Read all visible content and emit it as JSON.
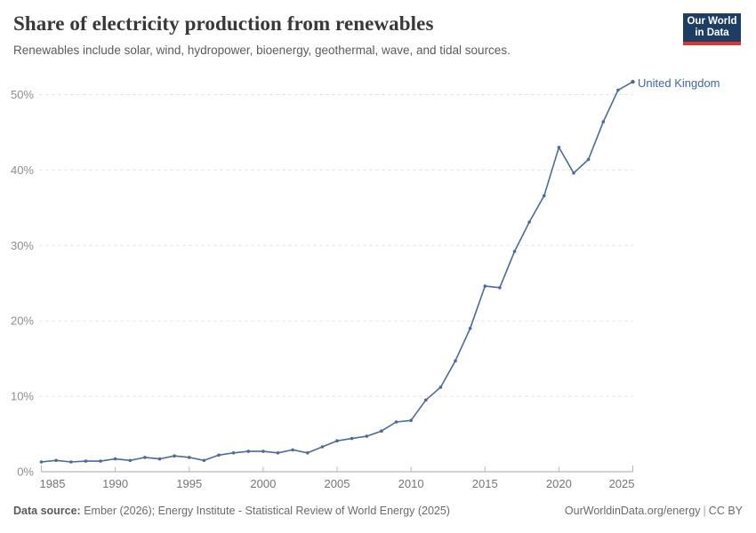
{
  "header": {
    "title": "Share of electricity production from renewables",
    "subtitle": "Renewables include solar, wind, hydropower, bioenergy, geothermal, wave, and tidal sources.",
    "logo": {
      "line1": "Our World",
      "line2": "in Data",
      "bg_color": "#1d3d63",
      "accent_color": "#e0342c"
    }
  },
  "chart_data": {
    "type": "line",
    "title": "Share of electricity production from renewables",
    "xlabel": "",
    "ylabel": "",
    "xlim": [
      1985,
      2025
    ],
    "ylim": [
      0,
      52
    ],
    "grid": "horizontal-dashed",
    "legend_position": "end-of-line-label",
    "x_ticks": [
      1985,
      1990,
      1995,
      2000,
      2005,
      2010,
      2015,
      2020,
      2025
    ],
    "y_ticks": [
      "0%",
      "10%",
      "20%",
      "30%",
      "40%",
      "50%"
    ],
    "series": [
      {
        "name": "United Kingdom",
        "color": "#4c6a9c",
        "label_color": "#3d66a6",
        "x": [
          1985,
          1986,
          1987,
          1988,
          1989,
          1990,
          1991,
          1992,
          1993,
          1994,
          1995,
          1996,
          1997,
          1998,
          1999,
          2000,
          2001,
          2002,
          2003,
          2004,
          2005,
          2006,
          2007,
          2008,
          2009,
          2010,
          2011,
          2012,
          2013,
          2014,
          2015,
          2016,
          2017,
          2018,
          2019,
          2020,
          2021,
          2022,
          2023,
          2024,
          2025
        ],
        "values": [
          1.3,
          1.5,
          1.3,
          1.4,
          1.4,
          1.7,
          1.5,
          1.9,
          1.7,
          2.1,
          1.9,
          1.5,
          2.2,
          2.5,
          2.7,
          2.7,
          2.5,
          2.9,
          2.5,
          3.3,
          4.1,
          4.4,
          4.7,
          5.4,
          6.6,
          6.8,
          9.5,
          11.2,
          14.7,
          19.0,
          24.6,
          24.4,
          29.2,
          33.1,
          36.6,
          43.0,
          39.6,
          41.4,
          46.4,
          50.6,
          51.7
        ]
      }
    ],
    "colors": {
      "gridline": "#e0e0e0",
      "axis": "#a5a5a5",
      "tick": "#b5b5b5",
      "y_tick_label": "#8d8d8d",
      "x_tick_label": "#757575"
    }
  },
  "footer": {
    "datasource_label": "Data source:",
    "datasource_text": " Ember (2026); Energy Institute - Statistical Review of World Energy (2025)",
    "link_text": "OurWorldinData.org/energy",
    "separator": "|",
    "license_text": "CC BY"
  }
}
